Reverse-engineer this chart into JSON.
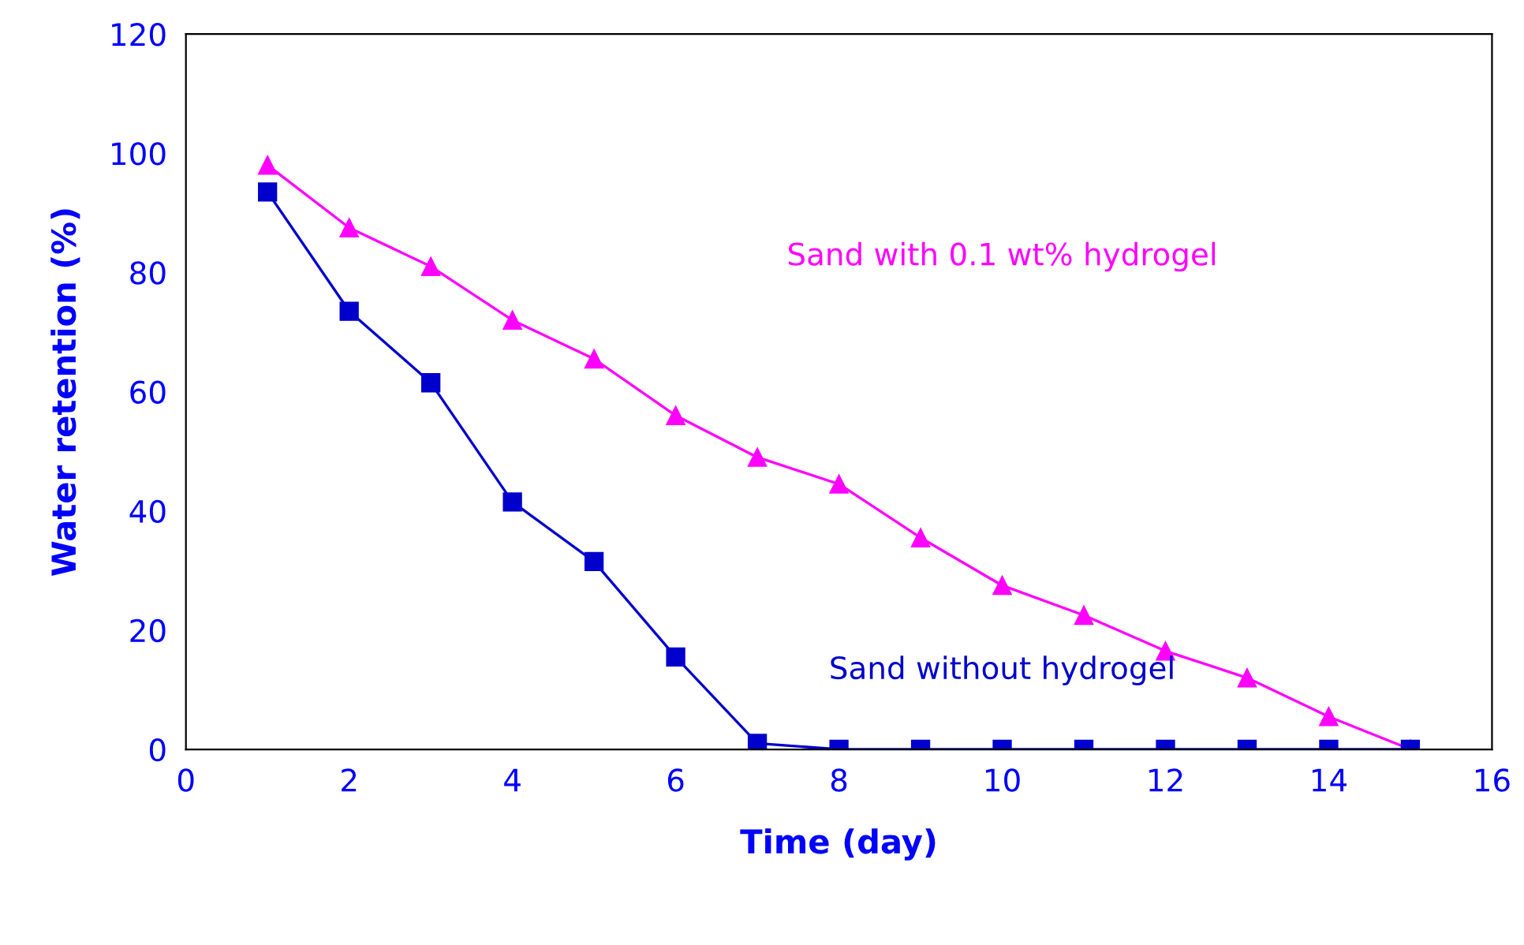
{
  "chart_data": {
    "type": "line",
    "xlabel": "Time (day)",
    "ylabel": "Water retention (%)",
    "x": [
      1,
      2,
      3,
      4,
      5,
      6,
      7,
      8,
      9,
      10,
      11,
      12,
      13,
      14,
      15
    ],
    "series": [
      {
        "name": "Sand with 0.1 wt% hydrogel",
        "color": "#ff00ff",
        "marker": "triangle",
        "values": [
          98,
          87.5,
          81,
          72,
          65.5,
          56,
          49,
          44.5,
          35.5,
          27.5,
          22.5,
          16.5,
          12,
          5.5,
          0
        ]
      },
      {
        "name": "Sand without hydrogel",
        "color": "#0000cc",
        "marker": "square",
        "values": [
          93.5,
          73.5,
          61.5,
          41.5,
          31.5,
          15.5,
          1,
          0,
          0,
          0,
          0,
          0,
          0,
          0,
          0
        ]
      }
    ],
    "xlim": [
      0,
      16
    ],
    "xticks": [
      0,
      2,
      4,
      6,
      8,
      10,
      12,
      14,
      16
    ],
    "ylim": [
      0,
      120
    ],
    "yticks": [
      0,
      20,
      40,
      60,
      80,
      100,
      120
    ],
    "grid": false,
    "legend": false
  }
}
